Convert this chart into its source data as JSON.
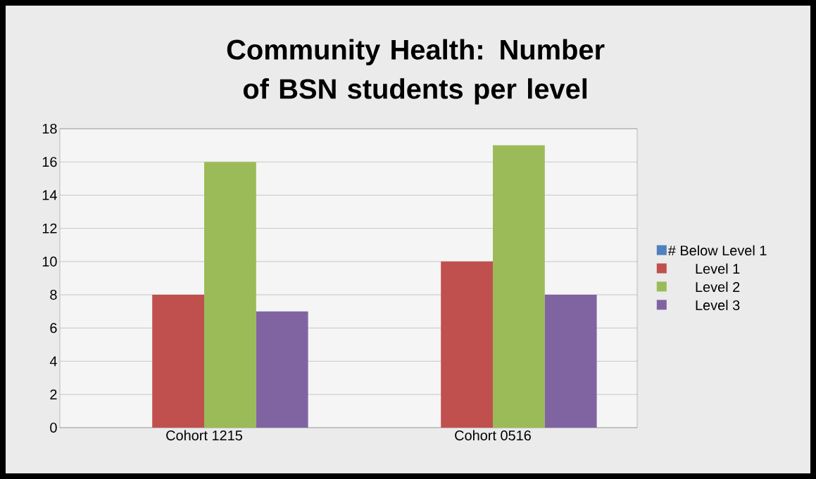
{
  "chart_data": {
    "type": "bar",
    "title": "Community Health: Number of BSN students per level",
    "categories": [
      "Cohort 1215",
      "Cohort 0516"
    ],
    "series": [
      {
        "name": "# Below Level 1",
        "color": "#4f81bd",
        "values": [
          0,
          0
        ]
      },
      {
        "name": "Level 1",
        "color": "#c0504d",
        "values": [
          8,
          10
        ]
      },
      {
        "name": "Level 2",
        "color": "#9bbb59",
        "values": [
          16,
          17
        ]
      },
      {
        "name": "Level 3",
        "color": "#8064a2",
        "values": [
          7,
          8
        ]
      }
    ],
    "ylim": [
      0,
      18
    ],
    "yticks": [
      0,
      2,
      4,
      6,
      8,
      10,
      12,
      14,
      16,
      18
    ],
    "grid": "y",
    "legend": "right"
  }
}
